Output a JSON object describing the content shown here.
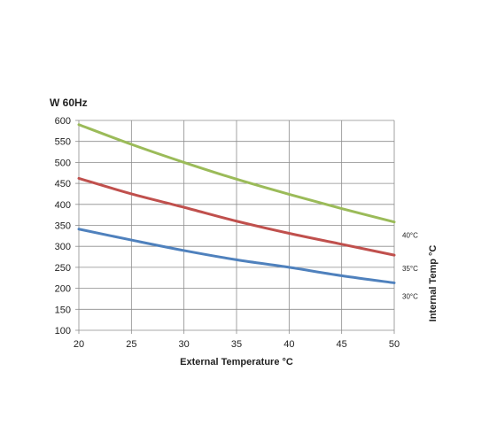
{
  "chart_data": {
    "type": "line",
    "title": "W  60Hz",
    "xlabel": "External Temperature °C",
    "ylabel_right": "Internal Temp °C",
    "xlim": [
      20,
      50
    ],
    "ylim": [
      100,
      600
    ],
    "xticks": [
      20,
      25,
      30,
      35,
      40,
      45,
      50
    ],
    "yticks": [
      100,
      150,
      200,
      250,
      300,
      350,
      400,
      450,
      500,
      550,
      600
    ],
    "grid": true,
    "series": [
      {
        "name": "40°C",
        "color": "#9bbb59",
        "x": [
          20,
          25,
          30,
          35,
          40,
          45,
          50
        ],
        "values": [
          590,
          543,
          500,
          460,
          424,
          390,
          358
        ]
      },
      {
        "name": "35°C",
        "color": "#c0504d",
        "x": [
          20,
          25,
          30,
          35,
          40,
          45,
          50
        ],
        "values": [
          462,
          425,
          393,
          360,
          331,
          305,
          279
        ]
      },
      {
        "name": "30°C",
        "color": "#4f81bd",
        "x": [
          20,
          25,
          30,
          35,
          40,
          45,
          50
        ],
        "values": [
          341,
          315,
          290,
          268,
          250,
          230,
          213
        ]
      }
    ]
  }
}
